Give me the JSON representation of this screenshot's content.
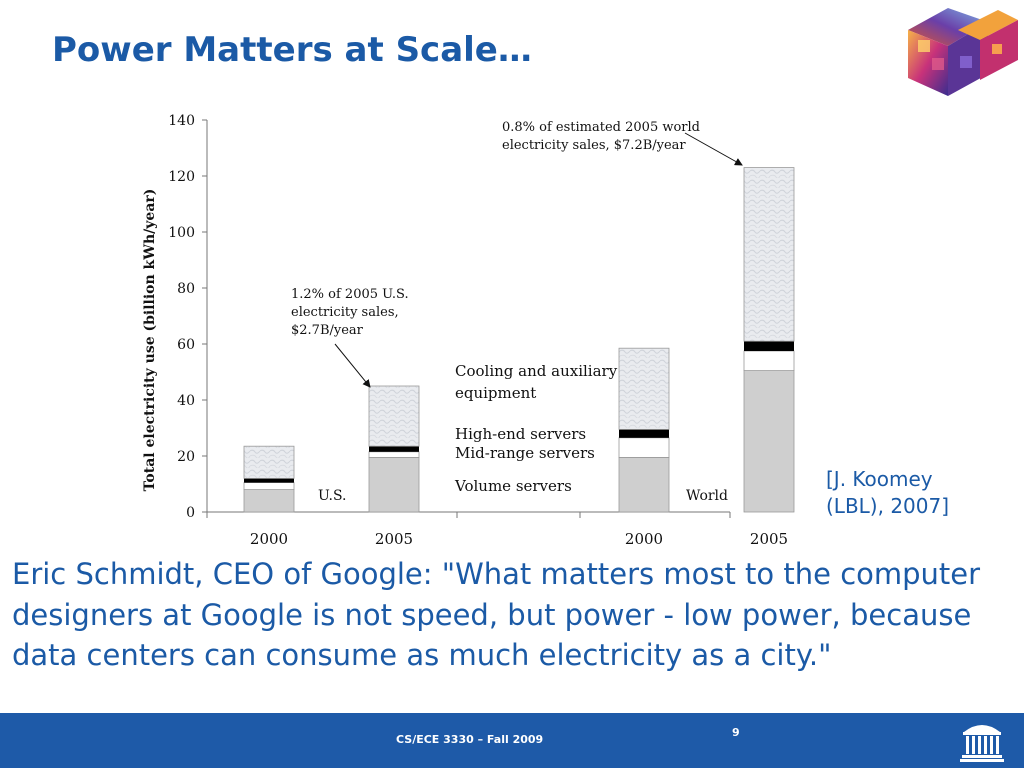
{
  "slide": {
    "title": "Power Matters at Scale…",
    "citation_line1": "[J. Koomey",
    "citation_line2": "(LBL), 2007]",
    "quote": "Eric Schmidt, CEO of Google: \"What matters most to the computer designers at Google is not speed, but power - low power, because data centers can consume as much electricity as a city.\"",
    "footer_course": "CS/ECE 3330 – Fall 2009",
    "page_number": "9",
    "logo_icon": "colorful-cube-logo-icon",
    "footer_icon": "rotunda-logo-icon"
  },
  "colors": {
    "title_blue": "#1b5aa6",
    "footer_blue": "#1e5aa8",
    "volume": "#cfcfcf",
    "midrange": "#ffffff",
    "highend": "#000000",
    "cooling": "#e8eaee"
  },
  "chart_data": {
    "type": "bar",
    "stacked": true,
    "ylabel": "Total electricity use (billion kWh/year)",
    "ylim": [
      0,
      140
    ],
    "yticks": [
      0,
      20,
      40,
      60,
      80,
      100,
      120,
      140
    ],
    "groups": [
      "U.S.",
      "World"
    ],
    "categories": [
      "2000",
      "2005",
      "2000",
      "2005"
    ],
    "series": [
      {
        "name": "Volume servers",
        "values": [
          8.0,
          19.5,
          19.5,
          50.5
        ]
      },
      {
        "name": "Mid-range servers",
        "values": [
          2.5,
          2.0,
          7.0,
          7.0
        ]
      },
      {
        "name": "High-end servers",
        "values": [
          1.5,
          2.0,
          3.0,
          3.5
        ]
      },
      {
        "name": "Cooling and auxiliary equipment",
        "values": [
          11.5,
          21.5,
          29.0,
          62.0
        ]
      }
    ],
    "legend_lines": [
      "Cooling and auxiliary",
      "equipment",
      "High-end servers",
      "Mid-range servers",
      "Volume servers"
    ],
    "annotations": [
      {
        "lines": [
          "1.2% of 2005 U.S.",
          "electricity sales,",
          "$2.7B/year"
        ],
        "target_bar": 1
      },
      {
        "lines": [
          "0.8% of estimated 2005 world",
          "electricity sales, $7.2B/year"
        ],
        "target_bar": 3
      }
    ],
    "grid": false
  }
}
